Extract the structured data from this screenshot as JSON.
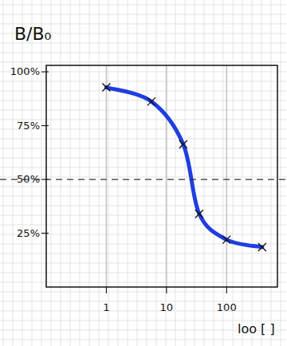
{
  "chart_data": {
    "type": "line",
    "y_label": "B/B₀",
    "x_label": "loo [ ]",
    "log": "x",
    "grid": true,
    "xlim": [
      0.1,
      700
    ],
    "xticks": [
      1,
      10,
      100
    ],
    "ylim": [
      0,
      103
    ],
    "yticks": [
      {
        "value": 25,
        "label": "25%"
      },
      {
        "value": 50,
        "label": "50%"
      },
      {
        "value": 75,
        "label": "75%"
      },
      {
        "value": 100,
        "label": "100%"
      }
    ],
    "hlines": [
      50
    ],
    "x": [
      1,
      5.6,
      19,
      35,
      100,
      390
    ],
    "series": [
      {
        "color": "#1f3fe0",
        "marker": "x",
        "line_style": "solid",
        "values": [
          92.8,
          86.2,
          66.3,
          34,
          22,
          18.5
        ]
      }
    ]
  }
}
